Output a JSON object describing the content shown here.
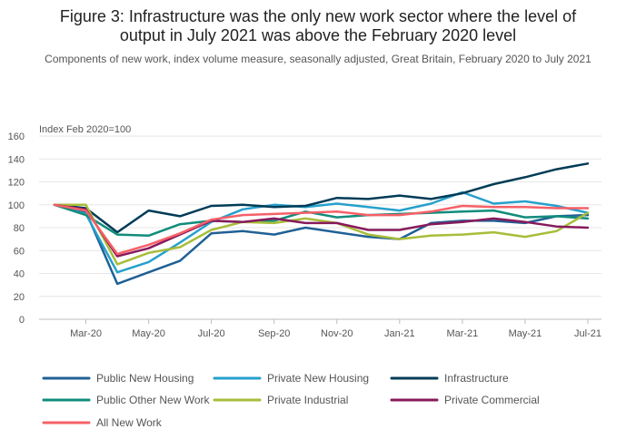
{
  "chart_data": {
    "type": "line",
    "title_line1": "Figure 3: Infrastructure was the only new work sector where the level of",
    "title_line2": "output in July 2021 was above the February 2020 level",
    "subtitle": "Components of new work, index volume measure, seasonally adjusted, Great Britain, February 2020 to July 2021",
    "ylabel": "Index Feb 2020=100",
    "ylim": [
      0,
      160
    ],
    "yticks": [
      0,
      20,
      40,
      60,
      80,
      100,
      120,
      140,
      160
    ],
    "x": [
      "Feb-20",
      "Mar-20",
      "Apr-20",
      "May-20",
      "Jun-20",
      "Jul-20",
      "Aug-20",
      "Sep-20",
      "Oct-20",
      "Nov-20",
      "Dec-20",
      "Jan-21",
      "Feb-21",
      "Mar-21",
      "Apr-21",
      "May-21",
      "Jun-21",
      "Jul-21"
    ],
    "xtick_labels": [
      "Mar-20",
      "May-20",
      "Jul-20",
      "Sep-20",
      "Nov-20",
      "Jan-21",
      "Mar-21",
      "May-21",
      "Jul-21"
    ],
    "xtick_indices": [
      1,
      3,
      5,
      7,
      9,
      11,
      13,
      15,
      17
    ],
    "grid": "horizontal",
    "legend_position": "bottom",
    "series": [
      {
        "name": "Public New Housing",
        "color": "#206095",
        "values": [
          100,
          94,
          31,
          41,
          51,
          75,
          77,
          74,
          80,
          76,
          72,
          70,
          84,
          86,
          86,
          84,
          90,
          91
        ]
      },
      {
        "name": "Private New Housing",
        "color": "#27a0cc",
        "values": [
          100,
          92,
          41,
          50,
          67,
          85,
          96,
          100,
          98,
          101,
          98,
          95,
          101,
          111,
          101,
          103,
          99,
          93
        ]
      },
      {
        "name": "Infrastructure",
        "color": "#003c57",
        "values": [
          100,
          97,
          76,
          95,
          90,
          99,
          100,
          98,
          99,
          106,
          105,
          108,
          105,
          110,
          118,
          124,
          131,
          136
        ]
      },
      {
        "name": "Public Other New Work",
        "color": "#118c7b",
        "values": [
          100,
          91,
          74,
          73,
          83,
          86,
          85,
          86,
          94,
          89,
          91,
          92,
          93,
          94,
          95,
          89,
          90,
          88
        ]
      },
      {
        "name": "Private Industrial",
        "color": "#a8bd3a",
        "values": [
          100,
          100,
          48,
          58,
          63,
          78,
          85,
          84,
          88,
          84,
          74,
          70,
          73,
          74,
          76,
          72,
          77,
          93
        ]
      },
      {
        "name": "Private Commercial",
        "color": "#871a5b",
        "values": [
          100,
          96,
          55,
          62,
          74,
          86,
          85,
          88,
          84,
          84,
          78,
          78,
          83,
          85,
          88,
          85,
          81,
          80
        ]
      },
      {
        "name": "All New Work",
        "color": "#f66068",
        "values": [
          100,
          95,
          57,
          65,
          75,
          87,
          91,
          92,
          93,
          94,
          91,
          91,
          94,
          99,
          98,
          98,
          97,
          97
        ]
      }
    ]
  }
}
